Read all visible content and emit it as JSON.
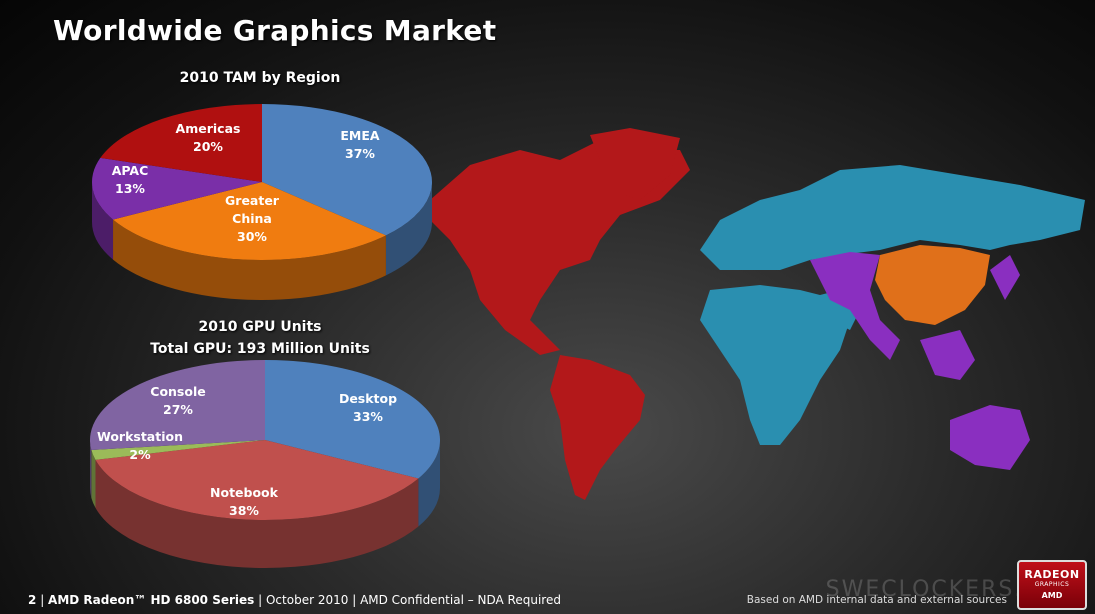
{
  "slide": {
    "title": "Worldwide Graphics Market",
    "footer_page": "2",
    "footer_product": "AMD Radeon™ HD 6800 Series",
    "footer_date": "October 2010",
    "footer_conf": "AMD Confidential – NDA Required",
    "source_note": "Based on AMD internal data and external sources",
    "watermark": "SWECLOCKERS.COM",
    "logo_line1": "RADEON",
    "logo_line2": "GRAPHICS",
    "logo_line3": "AMD"
  },
  "map_colors": {
    "Americas": "#b3181a",
    "EMEA": "#2a8fb0",
    "APAC": "#8a2fc0",
    "Greater China": "#e0701a"
  },
  "chart_data": [
    {
      "type": "pie",
      "title": "2010 TAM by Region",
      "labels": [
        "EMEA",
        "Greater China",
        "APAC",
        "Americas"
      ],
      "display_labels": [
        [
          "EMEA"
        ],
        [
          "Greater",
          "China"
        ],
        [
          "APAC"
        ],
        [
          "Americas"
        ]
      ],
      "values": [
        37,
        30,
        13,
        20
      ],
      "unit": "%",
      "colors": [
        "#4f81bd",
        "#f07c10",
        "#7a2fa8",
        "#b01010"
      ],
      "start_angle_deg": 0
    },
    {
      "type": "pie",
      "title": "2010 GPU Units",
      "subtitle": "Total GPU: 193 Million Units",
      "labels": [
        "Desktop",
        "Notebook",
        "Workstation",
        "Console"
      ],
      "display_labels": [
        [
          "Desktop"
        ],
        [
          "Notebook"
        ],
        [
          "Workstation"
        ],
        [
          "Console"
        ]
      ],
      "values": [
        33,
        38,
        2,
        27
      ],
      "unit": "%",
      "colors": [
        "#4f81bd",
        "#c0504d",
        "#9bbb59",
        "#8064a2"
      ],
      "start_angle_deg": 0
    }
  ]
}
